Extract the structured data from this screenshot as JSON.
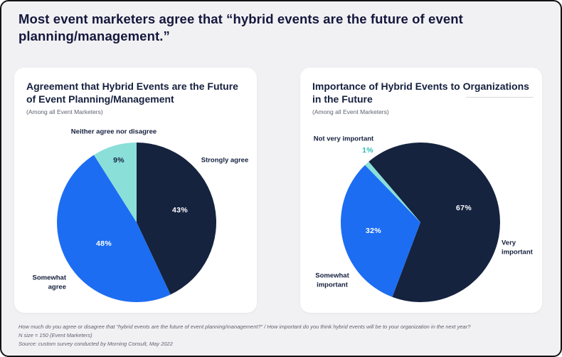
{
  "page": {
    "title": "Most event marketers agree that “hybrid events are the future of event planning/management.”",
    "background_color": "#F1F1F4",
    "card_color": "#FFFFFF",
    "accent_colors": {
      "navy": "#15233F",
      "blue": "#1C6DF2",
      "teal": "#8ADFD9"
    }
  },
  "chart_data": [
    {
      "type": "pie",
      "title": "Agreement that Hybrid Events are the Future of Event Planning/Management",
      "subtitle": "(Among all Event Marketers)",
      "start_angle_deg": 0,
      "legend_position": "outside-labels",
      "slices": [
        {
          "label": "Strongly agree",
          "value": 43,
          "pct_label": "43%",
          "color": "#15233F"
        },
        {
          "label": "Somewhat agree",
          "value": 48,
          "pct_label": "48%",
          "color": "#1C6DF2"
        },
        {
          "label": "Neither agree nor disagree",
          "value": 9,
          "pct_label": "9%",
          "color": "#8ADFD9"
        }
      ]
    },
    {
      "type": "pie",
      "title": "Importance of Hybrid Events to Organizations in the Future",
      "subtitle": "(Among all Event Marketers)",
      "start_angle_deg": -40.5,
      "legend_position": "outside-labels",
      "slices": [
        {
          "label": "Very important",
          "value": 67,
          "pct_label": "67%",
          "color": "#15233F"
        },
        {
          "label": "Somewhat important",
          "value": 32,
          "pct_label": "32%",
          "color": "#1C6DF2"
        },
        {
          "label": "Not very important",
          "value": 1,
          "pct_label": "1%",
          "color": "#8ADFD9"
        }
      ]
    }
  ],
  "footer": {
    "line1": "How much do you agree or disagree that “hybrid events are the future of event planning/management?” / How important do you think hybrid events will be to your organization in the next year?",
    "line2": "N size = 150 (Event Marketers)",
    "line3": "Source: custom survey conducted by Morning Consult, May 2022"
  }
}
